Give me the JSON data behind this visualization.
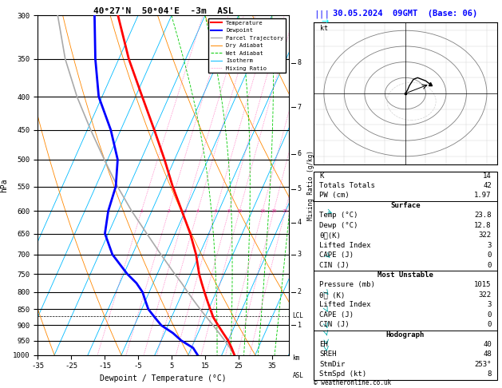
{
  "title_left": "40°27'N  50°04'E  -3m  ASL",
  "title_right": "30.05.2024  09GMT  (Base: 06)",
  "xlabel": "Dewpoint / Temperature (°C)",
  "ylabel_left": "hPa",
  "pmin": 300,
  "pmax": 1000,
  "tmin": -35,
  "tmax": 40,
  "skew_factor": 45.0,
  "isotherm_color": "#00bbff",
  "dry_adiabat_color": "#ff8800",
  "wet_adiabat_color": "#00cc00",
  "mixing_ratio_color": "#ff44aa",
  "mixing_ratio_values": [
    1,
    2,
    3,
    4,
    6,
    8,
    10,
    16,
    20,
    25
  ],
  "bg_color": "#ffffff",
  "temp_color": "#ff0000",
  "dewp_color": "#0000ff",
  "parcel_color": "#aaaaaa",
  "wind_color": "#00cccc",
  "temp_data": {
    "pressure": [
      1000,
      975,
      950,
      925,
      900,
      875,
      850,
      825,
      800,
      775,
      750,
      700,
      650,
      600,
      550,
      500,
      450,
      400,
      350,
      300
    ],
    "temp": [
      23.8,
      22.0,
      20.0,
      17.5,
      15.0,
      12.5,
      10.5,
      8.5,
      6.5,
      4.5,
      2.5,
      -1.0,
      -5.5,
      -11.0,
      -17.0,
      -23.0,
      -30.0,
      -38.0,
      -47.0,
      -56.0
    ]
  },
  "dewp_data": {
    "pressure": [
      1000,
      975,
      950,
      925,
      900,
      875,
      850,
      825,
      800,
      775,
      750,
      700,
      650,
      600,
      550,
      500,
      450,
      400,
      350,
      300
    ],
    "temp": [
      12.8,
      10.5,
      6.0,
      2.5,
      -2.0,
      -5.0,
      -8.0,
      -10.0,
      -12.0,
      -15.0,
      -19.0,
      -26.0,
      -31.0,
      -33.0,
      -34.0,
      -37.0,
      -43.0,
      -51.0,
      -57.0,
      -63.0
    ]
  },
  "parcel_data": {
    "pressure": [
      1000,
      975,
      950,
      925,
      900,
      875,
      850,
      825,
      800,
      775,
      750,
      700,
      650,
      600,
      550,
      500,
      450,
      400,
      350,
      300
    ],
    "temp": [
      23.8,
      21.5,
      19.0,
      16.3,
      13.5,
      10.5,
      7.5,
      4.5,
      1.5,
      -1.5,
      -4.8,
      -11.5,
      -18.5,
      -26.0,
      -33.5,
      -41.0,
      -49.0,
      -57.5,
      -66.0,
      -74.0
    ]
  },
  "wind_data": {
    "pressure": [
      1000,
      975,
      950,
      925,
      900,
      850,
      800,
      700,
      600,
      500,
      400,
      300
    ],
    "wind_speed": [
      3,
      4,
      5,
      6,
      7,
      8,
      10,
      15,
      20,
      25,
      30,
      40
    ],
    "wind_dir": [
      180,
      190,
      200,
      210,
      220,
      230,
      240,
      250,
      260,
      270,
      280,
      290
    ]
  },
  "lcl_pressure": 870,
  "pressure_levels": [
    300,
    350,
    400,
    450,
    500,
    550,
    600,
    650,
    700,
    750,
    800,
    850,
    900,
    950,
    1000
  ],
  "km_levels": {
    "1": 900,
    "2": 800,
    "3": 700,
    "4": 625,
    "5": 555,
    "6": 490,
    "7": 415,
    "8": 355
  },
  "info_panel": {
    "K": "14",
    "Totals Totals": "42",
    "PW (cm)": "1.97",
    "Surface_Temp": "23.8",
    "Surface_Dewp": "12.8",
    "Surface_theta_e": "322",
    "Surface_LI": "3",
    "Surface_CAPE": "0",
    "Surface_CIN": "0",
    "MU_Pressure": "1015",
    "MU_theta_e": "322",
    "MU_LI": "3",
    "MU_CAPE": "0",
    "MU_CIN": "0",
    "EH": "40",
    "SREH": "48",
    "StmDir": "253°",
    "StmSpd": "8"
  },
  "copyright": "© weatheronline.co.uk"
}
